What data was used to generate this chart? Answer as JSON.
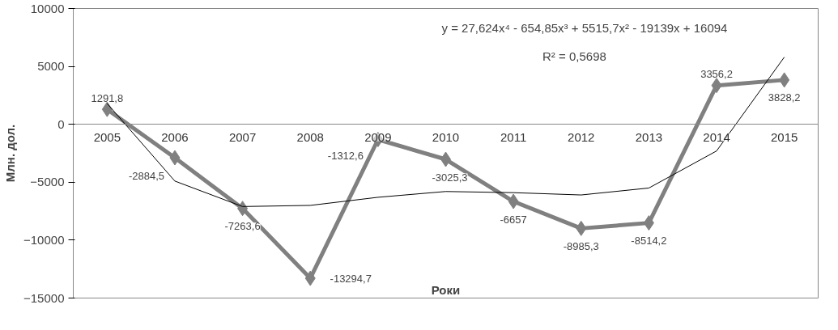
{
  "chart_data": {
    "type": "line",
    "xlabel": "Роки",
    "ylabel": "Млн. дол.",
    "categories": [
      "2005",
      "2006",
      "2007",
      "2008",
      "2009",
      "2010",
      "2011",
      "2012",
      "2013",
      "2014",
      "2015"
    ],
    "series": [
      {
        "color": "#808080",
        "marker": "diamond",
        "values": [
          1291.8,
          -2884.5,
          -7263.6,
          -13294.7,
          -1312.6,
          -3025.3,
          -6657,
          -8985.3,
          -8514.2,
          3356.2,
          3828.2
        ],
        "value_labels": [
          "1291,8",
          "-2884,5",
          "-7263,6",
          "-13294,7",
          "-1312,6",
          "-3025,3",
          "-6657",
          "-8985,3",
          "-8514,2",
          "3356,2",
          "3828,2"
        ]
      },
      {
        "color": "#000000",
        "marker": "none",
        "values": [
          1800,
          -4900,
          -7100,
          -7000,
          -6300,
          -5800,
          -5900,
          -6100,
          -5500,
          -2300,
          5800
        ]
      }
    ],
    "annotations": [
      "y = 27,624x⁴ - 654,85x³ + 5515,7x² - 19139x + 16094",
      "R² = 0,5698"
    ],
    "ylim": [
      -15000,
      10000
    ],
    "yticks": [
      -15000,
      -10000,
      -5000,
      0,
      5000,
      10000
    ],
    "grid": false
  }
}
